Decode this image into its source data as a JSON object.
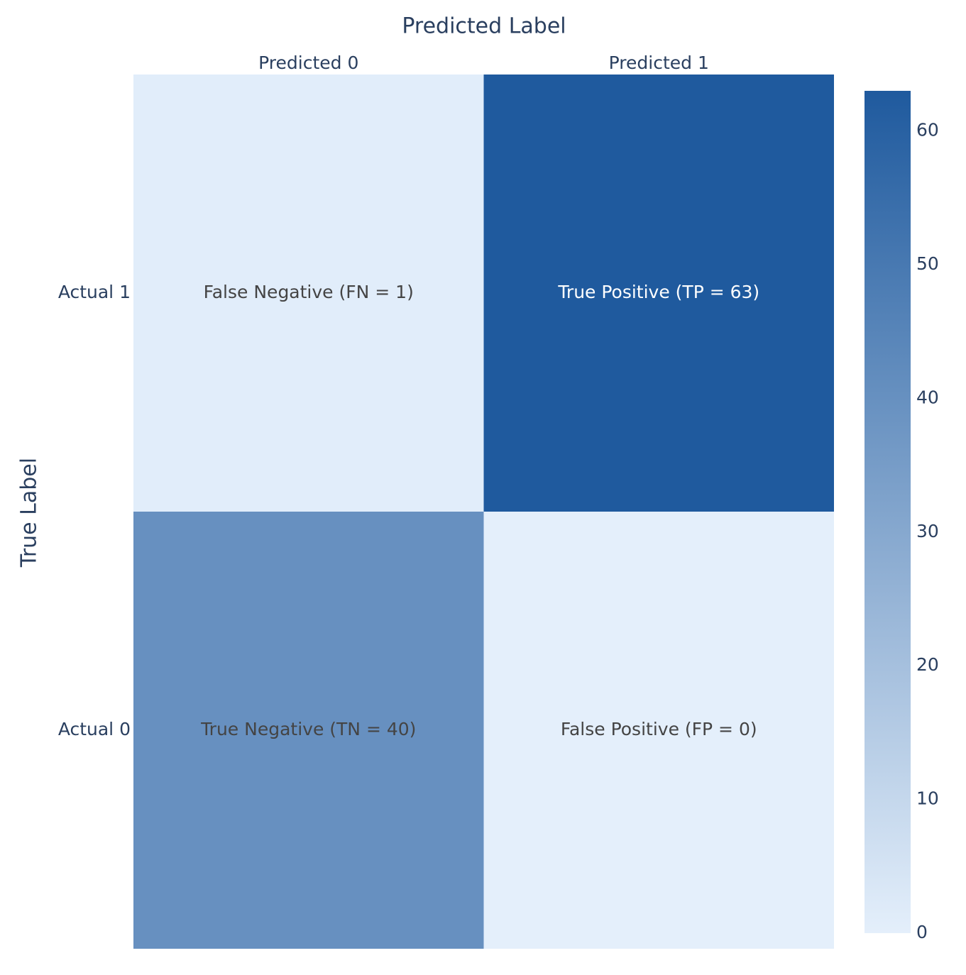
{
  "chart_data": {
    "type": "heatmap",
    "title": "Predicted Label",
    "y_label": "True Label",
    "x_categories": [
      "Predicted 0",
      "Predicted 1"
    ],
    "y_categories": [
      "Actual 1",
      "Actual 0"
    ],
    "values": [
      [
        1,
        63
      ],
      [
        40,
        0
      ]
    ],
    "value_labels": [
      [
        "False Negative (FN = 1)",
        "True Positive (TP = 63)"
      ],
      [
        "True Negative (TN = 40)",
        "False Positive (FP = 0)"
      ]
    ],
    "colorscale": [
      "#e4effb",
      "#1f5a9e"
    ],
    "zlim": [
      0,
      63
    ],
    "zticks": [
      0,
      10,
      20,
      30,
      40,
      50,
      60
    ]
  }
}
